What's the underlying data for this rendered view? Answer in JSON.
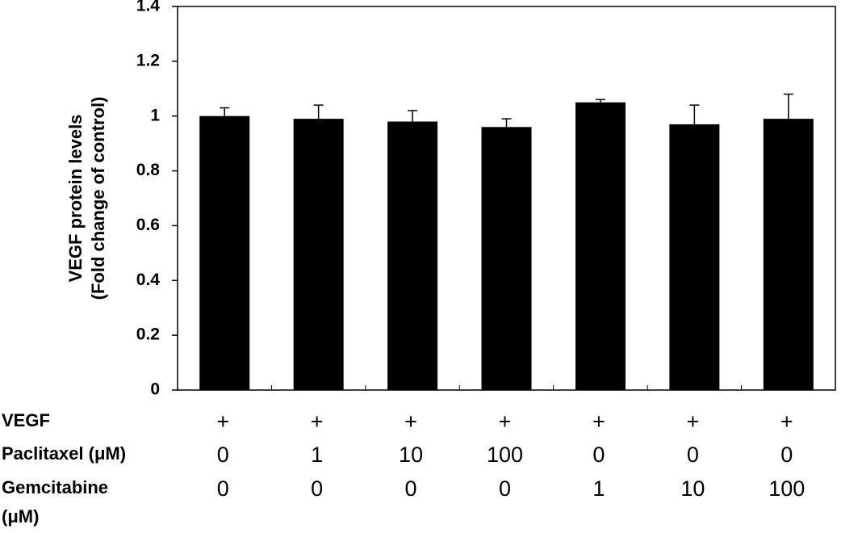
{
  "chart_data": {
    "type": "bar",
    "y_label": [
      "VEGF protein levels",
      "(Fold change of control)"
    ],
    "categories": [
      null,
      null,
      null,
      null,
      null,
      null,
      null
    ],
    "values": [
      1.0,
      0.99,
      0.98,
      0.96,
      1.05,
      0.97,
      0.99
    ],
    "errors": [
      0.03,
      0.05,
      0.04,
      0.03,
      0.01,
      0.07,
      0.09
    ],
    "color": "#000000",
    "ylim": [
      0,
      1.4
    ],
    "yticks": [
      0,
      0.2,
      0.4,
      0.6,
      0.8,
      1,
      1.2,
      1.4
    ],
    "grid": false,
    "conditions": [
      {
        "label": [
          "VEGF"
        ],
        "values": [
          "+",
          "+",
          "+",
          "+",
          "+",
          "+",
          "+"
        ]
      },
      {
        "label": [
          "Paclitaxel (μM)"
        ],
        "values": [
          "0",
          "1",
          "10",
          "100",
          "0",
          "0",
          "0"
        ]
      },
      {
        "label": [
          "Gemcitabine",
          "(μM)"
        ],
        "values": [
          "0",
          "0",
          "0",
          "0",
          "1",
          "10",
          "100"
        ]
      }
    ]
  }
}
